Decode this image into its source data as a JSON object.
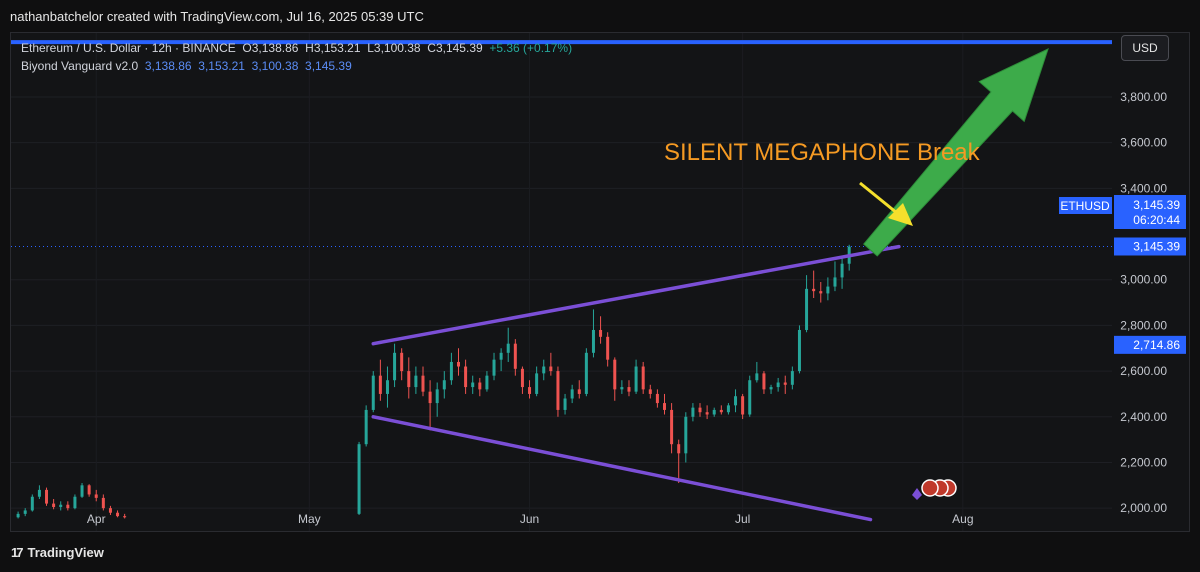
{
  "header": {
    "attribution": "nathanbatchelor created with TradingView.com, Jul 16, 2025 05:39 UTC"
  },
  "legend": {
    "symbol": "Ethereum / U.S. Dollar · 12h · BINANCE",
    "o_label": "O",
    "o_value": "3,138.86",
    "h_label": "H",
    "h_value": "3,153.21",
    "l_label": "L",
    "l_value": "3,100.38",
    "c_label": "C",
    "c_value": "3,145.39",
    "change": "+5.36 (+0.17%)",
    "indicator_name": "Biyond Vanguard v2.0",
    "indicator_values": [
      "3,138.86",
      "3,153.21",
      "3,100.38",
      "3,145.39"
    ]
  },
  "currency_button": "USD",
  "footer": {
    "brand": "TradingView"
  },
  "colors": {
    "up": "#26a69a",
    "down": "#ef5350",
    "purple": "#7b4fd6",
    "blue_line": "#2962ff",
    "orange": "#f7a21b",
    "label_orange": "#f59a23",
    "arrow_green": "#3dab4a",
    "arrow_yellow": "#f5e02c",
    "price_tag": "#2962ff"
  },
  "chart_data": {
    "type": "candlestick",
    "title": "",
    "annotation": "SILENT MEGAPHONE Break",
    "price_axis": {
      "ticks": [
        "3,800.00",
        "3,600.00",
        "3,400.00",
        "3,000.00",
        "2,800.00",
        "2,600.00",
        "2,400.00",
        "2,200.00",
        "2,000.00"
      ],
      "tick_values": [
        3800,
        3600,
        3400,
        3000,
        2800,
        2600,
        2400,
        2200,
        2000
      ],
      "ylim": [
        1900,
        4080
      ]
    },
    "time_axis": {
      "labels": [
        "Apr",
        "May",
        "Jun",
        "Jul",
        "Aug"
      ],
      "range": [
        "2025-03-20",
        "2025-08-22"
      ]
    },
    "price_tags": [
      {
        "label": "ETHUSD",
        "price": "3,145.39",
        "countdown": "06:20:44",
        "y": 3290
      },
      {
        "price": "3,145.39",
        "y": 3145.39
      },
      {
        "price": "2,714.86",
        "y": 2714.86
      }
    ],
    "upper_trendline": [
      [
        "2025-05-10",
        2720
      ],
      [
        "2025-07-23",
        3145
      ]
    ],
    "lower_trendline": [
      [
        "2025-05-10",
        2400
      ],
      [
        "2025-07-19",
        1950
      ]
    ],
    "horizontal_line": 4040,
    "breakout_arrow": [
      [
        "2025-07-19",
        3130
      ],
      [
        "2025-08-13",
        4010
      ]
    ],
    "candles": [
      [
        "2025-03-21",
        1960,
        1985,
        1955,
        1975
      ],
      [
        "2025-03-22",
        1975,
        2000,
        1965,
        1990
      ],
      [
        "2025-03-23",
        1990,
        2060,
        1985,
        2050
      ],
      [
        "2025-03-24",
        2050,
        2100,
        2040,
        2080
      ],
      [
        "2025-03-25",
        2080,
        2090,
        2010,
        2020
      ],
      [
        "2025-03-26",
        2020,
        2040,
        1995,
        2005
      ],
      [
        "2025-03-27",
        2005,
        2030,
        1990,
        2015
      ],
      [
        "2025-03-28",
        2015,
        2030,
        1990,
        2000
      ],
      [
        "2025-03-29",
        2000,
        2060,
        1995,
        2050
      ],
      [
        "2025-03-30",
        2050,
        2110,
        2045,
        2100
      ],
      [
        "2025-03-31",
        2100,
        2105,
        2050,
        2060
      ],
      [
        "2025-04-01",
        2060,
        2080,
        2030,
        2045
      ],
      [
        "2025-04-02",
        2045,
        2060,
        1990,
        2000
      ],
      [
        "2025-04-03",
        2000,
        2010,
        1970,
        1980
      ],
      [
        "2025-04-04",
        1980,
        1990,
        1960,
        1965
      ],
      [
        "2025-04-05",
        1965,
        1975,
        1955,
        1960
      ],
      [
        "2025-05-08",
        1975,
        2290,
        1970,
        2280
      ],
      [
        "2025-05-09",
        2280,
        2450,
        2270,
        2430
      ],
      [
        "2025-05-10",
        2430,
        2600,
        2420,
        2580
      ],
      [
        "2025-05-11",
        2580,
        2650,
        2470,
        2500
      ],
      [
        "2025-05-12",
        2500,
        2620,
        2440,
        2560
      ],
      [
        "2025-05-13",
        2560,
        2720,
        2530,
        2680
      ],
      [
        "2025-05-14",
        2680,
        2700,
        2560,
        2600
      ],
      [
        "2025-05-15",
        2600,
        2660,
        2480,
        2530
      ],
      [
        "2025-05-16",
        2530,
        2620,
        2500,
        2580
      ],
      [
        "2025-05-17",
        2580,
        2620,
        2490,
        2510
      ],
      [
        "2025-05-18",
        2510,
        2560,
        2340,
        2460
      ],
      [
        "2025-05-19",
        2460,
        2550,
        2400,
        2520
      ],
      [
        "2025-05-20",
        2520,
        2600,
        2480,
        2560
      ],
      [
        "2025-05-21",
        2560,
        2680,
        2540,
        2640
      ],
      [
        "2025-05-22",
        2640,
        2700,
        2580,
        2620
      ],
      [
        "2025-05-23",
        2620,
        2650,
        2500,
        2530
      ],
      [
        "2025-05-24",
        2530,
        2580,
        2500,
        2550
      ],
      [
        "2025-05-25",
        2550,
        2570,
        2490,
        2520
      ],
      [
        "2025-05-26",
        2520,
        2600,
        2510,
        2580
      ],
      [
        "2025-05-27",
        2580,
        2680,
        2560,
        2650
      ],
      [
        "2025-05-28",
        2650,
        2700,
        2600,
        2680
      ],
      [
        "2025-05-29",
        2680,
        2790,
        2640,
        2720
      ],
      [
        "2025-05-30",
        2720,
        2740,
        2580,
        2610
      ],
      [
        "2025-05-31",
        2610,
        2620,
        2500,
        2530
      ],
      [
        "2025-06-01",
        2530,
        2560,
        2480,
        2500
      ],
      [
        "2025-06-02",
        2500,
        2620,
        2490,
        2590
      ],
      [
        "2025-06-03",
        2590,
        2650,
        2560,
        2620
      ],
      [
        "2025-06-04",
        2620,
        2680,
        2580,
        2600
      ],
      [
        "2025-06-05",
        2600,
        2620,
        2400,
        2430
      ],
      [
        "2025-06-06",
        2430,
        2500,
        2410,
        2480
      ],
      [
        "2025-06-07",
        2480,
        2540,
        2460,
        2520
      ],
      [
        "2025-06-08",
        2520,
        2560,
        2480,
        2500
      ],
      [
        "2025-06-09",
        2500,
        2700,
        2490,
        2680
      ],
      [
        "2025-06-10",
        2680,
        2870,
        2660,
        2780
      ],
      [
        "2025-06-11",
        2780,
        2840,
        2720,
        2750
      ],
      [
        "2025-06-12",
        2750,
        2770,
        2620,
        2650
      ],
      [
        "2025-06-13",
        2650,
        2660,
        2470,
        2520
      ],
      [
        "2025-06-14",
        2520,
        2560,
        2500,
        2530
      ],
      [
        "2025-06-15",
        2530,
        2560,
        2490,
        2510
      ],
      [
        "2025-06-16",
        2510,
        2650,
        2500,
        2620
      ],
      [
        "2025-06-17",
        2620,
        2640,
        2500,
        2520
      ],
      [
        "2025-06-18",
        2520,
        2540,
        2480,
        2500
      ],
      [
        "2025-06-19",
        2500,
        2520,
        2440,
        2460
      ],
      [
        "2025-06-20",
        2460,
        2500,
        2410,
        2430
      ],
      [
        "2025-06-21",
        2430,
        2460,
        2240,
        2280
      ],
      [
        "2025-06-22",
        2280,
        2300,
        2110,
        2240
      ],
      [
        "2025-06-23",
        2240,
        2420,
        2200,
        2400
      ],
      [
        "2025-06-24",
        2400,
        2460,
        2380,
        2440
      ],
      [
        "2025-06-25",
        2440,
        2460,
        2400,
        2420
      ],
      [
        "2025-06-26",
        2420,
        2450,
        2390,
        2410
      ],
      [
        "2025-06-27",
        2410,
        2440,
        2400,
        2430
      ],
      [
        "2025-06-28",
        2430,
        2450,
        2410,
        2420
      ],
      [
        "2025-06-29",
        2420,
        2460,
        2410,
        2450
      ],
      [
        "2025-06-30",
        2450,
        2520,
        2420,
        2490
      ],
      [
        "2025-07-01",
        2490,
        2500,
        2390,
        2410
      ],
      [
        "2025-07-02",
        2410,
        2580,
        2400,
        2560
      ],
      [
        "2025-07-03",
        2560,
        2640,
        2550,
        2590
      ],
      [
        "2025-07-04",
        2590,
        2600,
        2500,
        2520
      ],
      [
        "2025-07-05",
        2520,
        2540,
        2500,
        2530
      ],
      [
        "2025-07-06",
        2530,
        2570,
        2510,
        2550
      ],
      [
        "2025-07-07",
        2550,
        2580,
        2500,
        2540
      ],
      [
        "2025-07-08",
        2540,
        2620,
        2520,
        2600
      ],
      [
        "2025-07-09",
        2600,
        2800,
        2590,
        2780
      ],
      [
        "2025-07-10",
        2780,
        3020,
        2770,
        2960
      ],
      [
        "2025-07-11",
        2960,
        3040,
        2920,
        2950
      ],
      [
        "2025-07-12",
        2950,
        2990,
        2900,
        2940
      ],
      [
        "2025-07-13",
        2940,
        3010,
        2910,
        2970
      ],
      [
        "2025-07-14",
        2970,
        3080,
        2950,
        3010
      ],
      [
        "2025-07-15",
        3010,
        3100,
        2960,
        3070
      ],
      [
        "2025-07-16",
        3070,
        3153,
        3040,
        3145
      ]
    ]
  }
}
